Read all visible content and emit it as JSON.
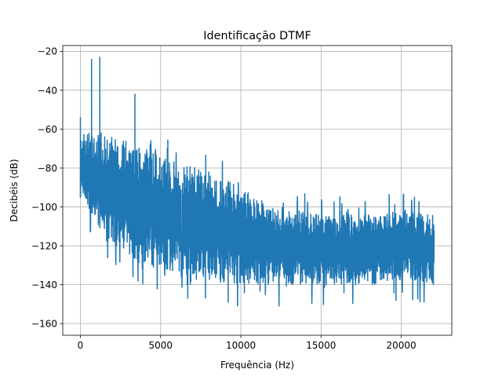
{
  "chart_data": {
    "type": "line",
    "title": "Identificação DTMF",
    "xlabel": "Frequência (Hz)",
    "ylabel": "Decibéis (dB)",
    "xlim": [
      -1100,
      23150
    ],
    "ylim": [
      -166,
      -17
    ],
    "xticks": [
      0,
      5000,
      10000,
      15000,
      20000
    ],
    "xtick_labels": [
      "0",
      "5000",
      "10000",
      "15000",
      "20000"
    ],
    "yticks": [
      -20,
      -40,
      -60,
      -80,
      -100,
      -120,
      -140,
      -160
    ],
    "ytick_labels": [
      "−20",
      "−40",
      "−60",
      "−80",
      "−100",
      "−120",
      "−140",
      "−160"
    ],
    "grid": true,
    "legend": "none",
    "series": [
      {
        "color": "#1f77b4",
        "x_range": [
          0,
          22050
        ],
        "peaks": [
          {
            "x": 697,
            "y": -24
          },
          {
            "x": 1209,
            "y": -23
          },
          {
            "x": 0,
            "y": -54
          },
          {
            "x": 3400,
            "y": -42
          }
        ],
        "envelope": {
          "x": [
            0,
            500,
            1500,
            3000,
            5000,
            8000,
            10000,
            12000,
            15000,
            17000,
            19000,
            20000,
            22050
          ],
          "upper": [
            -62,
            -62,
            -62,
            -66,
            -74,
            -82,
            -90,
            -100,
            -104,
            -104,
            -104,
            -101,
            -104
          ],
          "lower": [
            -95,
            -100,
            -115,
            -125,
            -132,
            -138,
            -140,
            -140,
            -140,
            -140,
            -140,
            -137,
            -140
          ]
        }
      }
    ]
  }
}
